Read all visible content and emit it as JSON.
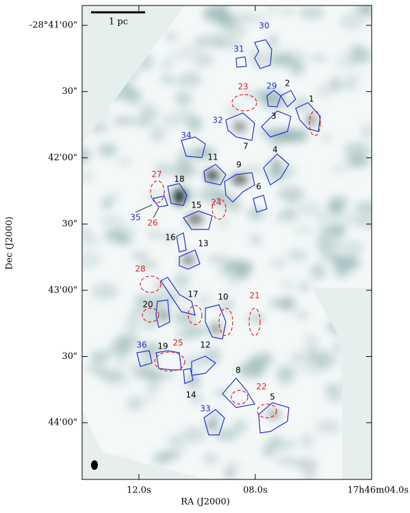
{
  "chart_data": {
    "type": "image",
    "xlabel": "RA (J2000)",
    "ylabel": "Dec (J2000)",
    "xlim": [
      13.95,
      4.0
    ],
    "xticks": [
      {
        "value": 12,
        "label": "12.0s"
      },
      {
        "value": 8,
        "label": "08.0s"
      },
      {
        "value": 4,
        "label": "17h46m04.0s"
      }
    ],
    "ylim": [
      -103465.7,
      -103251
    ],
    "yticks": [
      {
        "value": -103260,
        "label": "-28°41'00\""
      },
      {
        "value": -103290,
        "label": "30\""
      },
      {
        "value": -103320,
        "label": "42'00\""
      },
      {
        "value": -103350,
        "label": "30\""
      },
      {
        "value": -103380,
        "label": "43'00\""
      },
      {
        "value": -103410,
        "label": "30\""
      },
      {
        "value": -103440,
        "label": "44'00\""
      }
    ],
    "scalebar": "1 pc",
    "sources": [
      {
        "label": "30",
        "color": "blue"
      },
      {
        "label": "31",
        "color": "blue"
      },
      {
        "label": "23",
        "color": "red"
      },
      {
        "label": "29",
        "color": "blue"
      },
      {
        "label": "2",
        "color": "black"
      },
      {
        "label": "1",
        "color": "black"
      },
      {
        "label": "32",
        "color": "blue"
      },
      {
        "label": "3",
        "color": "black"
      },
      {
        "label": "34",
        "color": "blue"
      },
      {
        "label": "7",
        "color": "black"
      },
      {
        "label": "4",
        "color": "black"
      },
      {
        "label": "11",
        "color": "black"
      },
      {
        "label": "9",
        "color": "black"
      },
      {
        "label": "27",
        "color": "red"
      },
      {
        "label": "18",
        "color": "black"
      },
      {
        "label": "6",
        "color": "black"
      },
      {
        "label": "24",
        "color": "red"
      },
      {
        "label": "15",
        "color": "black"
      },
      {
        "label": "35",
        "color": "blue"
      },
      {
        "label": "26",
        "color": "red"
      },
      {
        "label": "16",
        "color": "black"
      },
      {
        "label": "13",
        "color": "black"
      },
      {
        "label": "28",
        "color": "red"
      },
      {
        "label": "17",
        "color": "black"
      },
      {
        "label": "10",
        "color": "black"
      },
      {
        "label": "21",
        "color": "red"
      },
      {
        "label": "20",
        "color": "black"
      },
      {
        "label": "36",
        "color": "blue"
      },
      {
        "label": "19",
        "color": "black"
      },
      {
        "label": "25",
        "color": "red"
      },
      {
        "label": "12",
        "color": "black"
      },
      {
        "label": "8",
        "color": "black"
      },
      {
        "label": "22",
        "color": "red"
      },
      {
        "label": "14",
        "color": "black"
      },
      {
        "label": "5",
        "color": "black"
      },
      {
        "label": "33",
        "color": "blue"
      }
    ]
  }
}
